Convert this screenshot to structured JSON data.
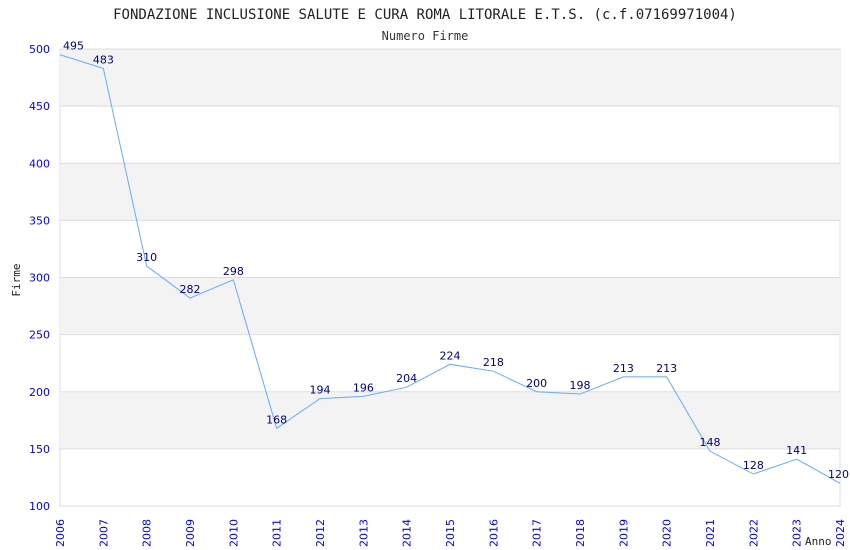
{
  "chart_data": {
    "type": "line",
    "title": "FONDAZIONE INCLUSIONE SALUTE E CURA ROMA LITORALE E.T.S. (c.f.07169971004)",
    "subtitle": "Numero Firme",
    "xlabel": "Anno",
    "ylabel": "Firme",
    "ylim": [
      100,
      500
    ],
    "yticks": [
      100,
      150,
      200,
      250,
      300,
      350,
      400,
      450,
      500
    ],
    "categories": [
      "2006",
      "2007",
      "2008",
      "2009",
      "2010",
      "2011",
      "2012",
      "2013",
      "2014",
      "2015",
      "2016",
      "2017",
      "2018",
      "2019",
      "2020",
      "2021",
      "2022",
      "2023",
      "2024"
    ],
    "series": [
      {
        "name": "Numero Firme",
        "values": [
          495,
          483,
          310,
          282,
          298,
          168,
          194,
          196,
          204,
          224,
          218,
          200,
          198,
          213,
          213,
          148,
          128,
          141,
          120
        ]
      }
    ],
    "grid": true,
    "line_color": "#66aaff",
    "label_color": "#000080",
    "tick_color": "#0000ff"
  }
}
